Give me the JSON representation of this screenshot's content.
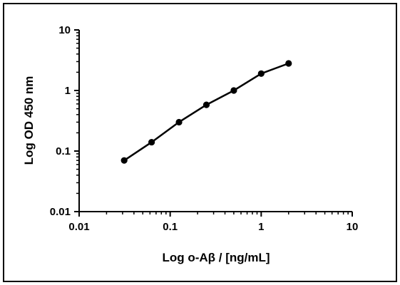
{
  "chart_data": {
    "type": "line",
    "xlabel": "Log o-Aβ / [ng/mL]",
    "ylabel": "Log OD 450 nm",
    "xscale": "log",
    "yscale": "log",
    "xlim": [
      0.01,
      10
    ],
    "ylim": [
      0.01,
      10
    ],
    "x_ticks": [
      "0.01",
      "0.1",
      "1",
      "10"
    ],
    "y_ticks": [
      "0.01",
      "0.1",
      "1",
      "10"
    ],
    "grid": false,
    "legend": "none",
    "series": [
      {
        "color": "#000000",
        "marker": "circle",
        "x": [
          0.03125,
          0.0625,
          0.125,
          0.25,
          0.5,
          1,
          2
        ],
        "y": [
          0.07,
          0.14,
          0.3,
          0.58,
          1.0,
          1.9,
          2.8
        ]
      }
    ]
  }
}
